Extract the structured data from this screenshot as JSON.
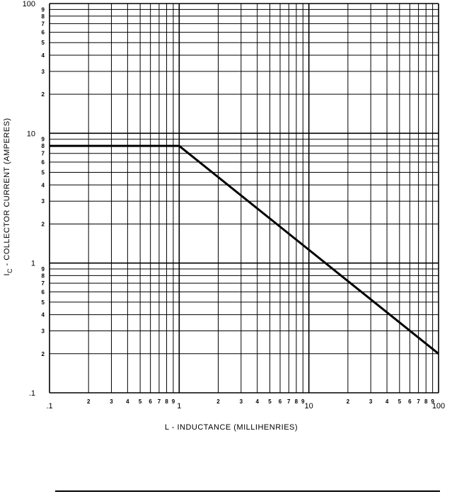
{
  "chart_data": {
    "type": "line",
    "scale": "log-log",
    "grid": true,
    "xlabel": "L - INDUCTANCE (MILLIHENRIES)",
    "ylabel_symbol": "I",
    "ylabel_subscript": "C",
    "ylabel_text": " - COLLECTOR CURRENT (AMPERES)",
    "xlim": [
      0.1,
      100
    ],
    "ylim": [
      0.1,
      100
    ],
    "x_major_ticks": [
      {
        "value": 0.1,
        "label": ".1"
      },
      {
        "value": 1,
        "label": "1"
      },
      {
        "value": 10,
        "label": "10"
      },
      {
        "value": 100,
        "label": "100"
      }
    ],
    "y_major_ticks": [
      {
        "value": 0.1,
        "label": ".1"
      },
      {
        "value": 1,
        "label": "1"
      },
      {
        "value": 10,
        "label": "10"
      },
      {
        "value": 100,
        "label": "100"
      }
    ],
    "minor_tick_labels": [
      "2",
      "3",
      "4",
      "5",
      "6",
      "7",
      "8",
      "9"
    ],
    "series": [
      {
        "x": [
          0.1,
          1,
          100
        ],
        "y": [
          8,
          8,
          0.2
        ]
      }
    ]
  }
}
